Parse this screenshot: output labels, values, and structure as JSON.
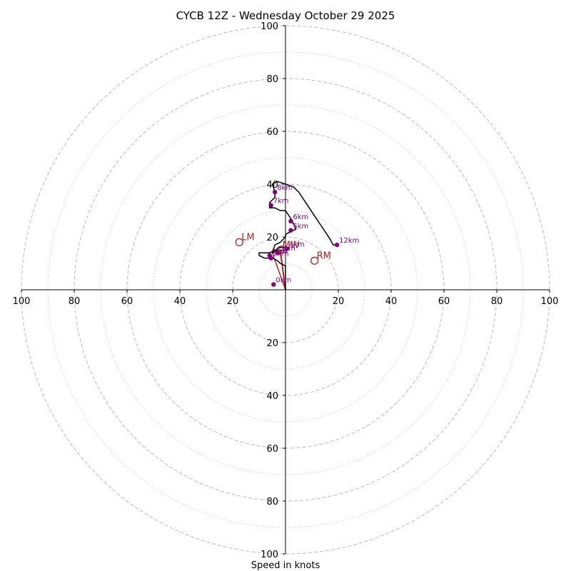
{
  "chart_data": {
    "type": "hodograph",
    "title": "CYCB 12Z - Wednesday October 29 2025",
    "xlabel": "Speed in knots",
    "units": "knots",
    "max_speed": 100,
    "rings": [
      20,
      40,
      60,
      80,
      100
    ],
    "minor_rings": [
      10,
      30,
      50,
      70,
      90
    ],
    "tick_labels": [
      "20",
      "40",
      "60",
      "80",
      "100"
    ],
    "colors": {
      "grid": "#bbbbbb",
      "hodograph": "#000000",
      "height_marker": "#800080",
      "motion": "#b22222"
    },
    "hodograph": [
      [
        0,
        0
      ],
      [
        0,
        9
      ],
      [
        -2,
        10
      ],
      [
        -3,
        11
      ],
      [
        -5,
        12
      ],
      [
        -8,
        12
      ],
      [
        -10,
        13
      ],
      [
        -10,
        14
      ],
      [
        -6,
        14
      ],
      [
        -4,
        15
      ],
      [
        -2,
        16
      ],
      [
        0,
        16
      ],
      [
        1,
        16
      ],
      [
        0,
        15
      ],
      [
        -1,
        15
      ],
      [
        -3,
        15
      ],
      [
        -5,
        14
      ],
      [
        -4,
        17
      ],
      [
        -2,
        18
      ],
      [
        0,
        20
      ],
      [
        0,
        21
      ],
      [
        2,
        22
      ],
      [
        4,
        23
      ],
      [
        3,
        25
      ],
      [
        2,
        27
      ],
      [
        0,
        30
      ],
      [
        -2,
        30
      ],
      [
        -4,
        31
      ],
      [
        -6,
        31
      ],
      [
        -6,
        33
      ],
      [
        -5,
        34
      ],
      [
        -4,
        35
      ],
      [
        -4,
        37
      ],
      [
        -5,
        40
      ],
      [
        -3,
        41
      ],
      [
        0,
        40
      ],
      [
        3,
        39
      ],
      [
        5,
        37
      ],
      [
        7,
        34
      ],
      [
        9,
        31
      ],
      [
        11,
        28
      ],
      [
        13,
        25
      ],
      [
        15,
        22
      ],
      [
        17,
        19
      ],
      [
        18,
        17
      ],
      [
        19,
        17
      ]
    ],
    "height_markers": [
      {
        "label": "0km",
        "u": -4.5,
        "v": 2
      },
      {
        "label": "1km",
        "u": -6,
        "v": 13
      },
      {
        "label": "2km",
        "u": -5.5,
        "v": 12
      },
      {
        "label": "3km",
        "u": -3,
        "v": 14
      },
      {
        "label": "4km",
        "u": 0.5,
        "v": 15.5
      },
      {
        "label": "5km",
        "u": 2,
        "v": 22.5
      },
      {
        "label": "6km",
        "u": 2,
        "v": 26
      },
      {
        "label": "7km",
        "u": -5.5,
        "v": 32
      },
      {
        "label": "8km",
        "u": -4,
        "v": 37
      },
      {
        "label": "12km",
        "u": 19.5,
        "v": 17
      }
    ],
    "storm_motion": [
      {
        "label": "LM",
        "u": -17.5,
        "v": 18
      },
      {
        "label": "MW",
        "u": -2,
        "v": 15
      },
      {
        "label": "RM",
        "u": 11,
        "v": 11
      }
    ],
    "motion_vector": {
      "from": [
        0,
        0
      ],
      "to": [
        -2,
        15
      ]
    }
  }
}
